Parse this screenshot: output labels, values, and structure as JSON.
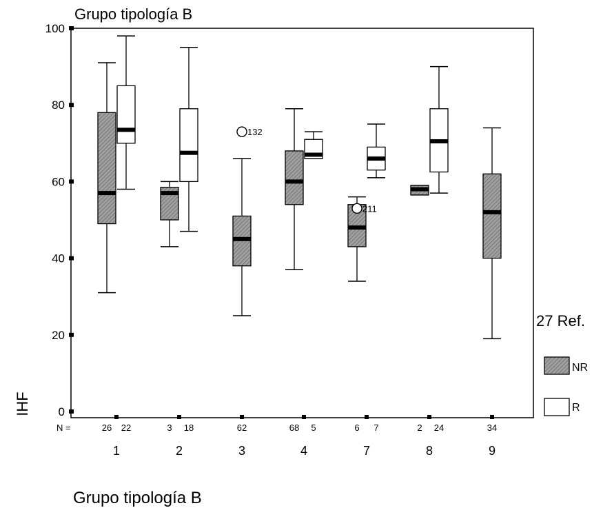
{
  "chart_data": {
    "type": "boxplot",
    "title": "Grupo tipología B",
    "xlabel": "Grupo tipología B",
    "ylabel": "IHF",
    "ylim": [
      0,
      100
    ],
    "yticks": [
      0,
      20,
      40,
      60,
      80,
      100
    ],
    "n_prefix": "N =",
    "categories": [
      "1",
      "2",
      "3",
      "4",
      "7",
      "8",
      "9"
    ],
    "series": [
      {
        "name": "NR",
        "fill": "#9a9a9a",
        "hatched": true
      },
      {
        "name": "R",
        "fill": "#ffffff",
        "hatched": false
      }
    ],
    "boxes": [
      {
        "category": "1",
        "series": "NR",
        "n": "26",
        "min": 31,
        "q1": 49,
        "median": 57,
        "q3": 78,
        "max": 91
      },
      {
        "category": "1",
        "series": "R",
        "n": "22",
        "min": 58,
        "q1": 70,
        "median": 73.5,
        "q3": 85,
        "max": 98
      },
      {
        "category": "2",
        "series": "NR",
        "n": "3",
        "min": 43,
        "q1": 50,
        "median": 57,
        "q3": 58.5,
        "max": 60
      },
      {
        "category": "2",
        "series": "R",
        "n": "18",
        "min": 47,
        "q1": 60,
        "median": 67.5,
        "q3": 79,
        "max": 95
      },
      {
        "category": "3",
        "series": "NR",
        "n": "62",
        "min": 25,
        "q1": 38,
        "median": 45,
        "q3": 51,
        "max": 66
      },
      {
        "category": "4",
        "series": "NR",
        "n": "68",
        "min": 37,
        "q1": 54,
        "median": 60,
        "q3": 68,
        "max": 79
      },
      {
        "category": "4",
        "series": "R",
        "n": "5",
        "min": 66,
        "q1": 66,
        "median": 67,
        "q3": 71,
        "max": 73
      },
      {
        "category": "7",
        "series": "NR",
        "n": "6",
        "min": 34,
        "q1": 43,
        "median": 48,
        "q3": 54,
        "max": 56
      },
      {
        "category": "7",
        "series": "R",
        "n": "7",
        "min": 61,
        "q1": 63,
        "median": 66,
        "q3": 69,
        "max": 75
      },
      {
        "category": "8",
        "series": "NR",
        "n": "2",
        "min": 56.5,
        "q1": 56.5,
        "median": 58,
        "q3": 59,
        "max": 59
      },
      {
        "category": "8",
        "series": "R",
        "n": "24",
        "min": 57,
        "q1": 62.5,
        "median": 70.5,
        "q3": 79,
        "max": 90
      },
      {
        "category": "9",
        "series": "NR",
        "n": "34",
        "min": 19,
        "q1": 40,
        "median": 52,
        "q3": 62,
        "max": 74
      }
    ],
    "outliers": [
      {
        "category": "3",
        "series": "NR",
        "value": 73,
        "label": "132"
      },
      {
        "category": "7",
        "series": "NR",
        "value": 53,
        "label": "211"
      }
    ],
    "legend": {
      "title": "27 Ref.",
      "entries": [
        {
          "label": "NR",
          "fill": "#9a9a9a",
          "hatched": true
        },
        {
          "label": "R",
          "fill": "#ffffff",
          "hatched": false
        }
      ],
      "placement": "right"
    }
  }
}
